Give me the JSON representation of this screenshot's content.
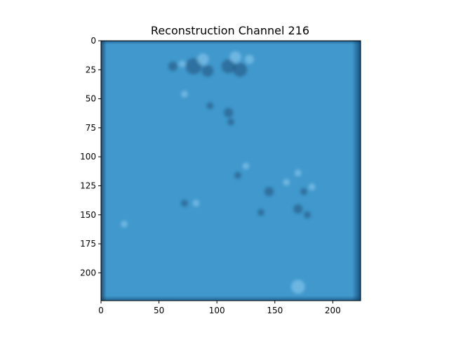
{
  "figure": {
    "title": "Reconstruction Channel 216",
    "background_color": "#ffffff",
    "image_base_color": "#4098cc",
    "image_edge_color": "#0b3a66",
    "blob_dark_color": "#1e4f7a",
    "blob_light_color": "#8ccaf0"
  },
  "x_axis": {
    "range": [
      0,
      224
    ],
    "ticks": [
      {
        "value": 0,
        "label": "0"
      },
      {
        "value": 50,
        "label": "50"
      },
      {
        "value": 100,
        "label": "100"
      },
      {
        "value": 150,
        "label": "150"
      },
      {
        "value": 200,
        "label": "200"
      }
    ]
  },
  "y_axis": {
    "range": [
      0,
      224
    ],
    "inverted": true,
    "ticks": [
      {
        "value": 0,
        "label": "0"
      },
      {
        "value": 25,
        "label": "25"
      },
      {
        "value": 50,
        "label": "50"
      },
      {
        "value": 75,
        "label": "75"
      },
      {
        "value": 100,
        "label": "100"
      },
      {
        "value": 125,
        "label": "125"
      },
      {
        "value": 150,
        "label": "150"
      },
      {
        "value": 175,
        "label": "175"
      },
      {
        "value": 200,
        "label": "200"
      }
    ]
  },
  "features": [
    {
      "x": 80,
      "y": 22,
      "r": 7,
      "tone": "dark"
    },
    {
      "x": 88,
      "y": 16,
      "r": 5,
      "tone": "light"
    },
    {
      "x": 92,
      "y": 26,
      "r": 5,
      "tone": "dark"
    },
    {
      "x": 110,
      "y": 22,
      "r": 6,
      "tone": "dark"
    },
    {
      "x": 120,
      "y": 25,
      "r": 6,
      "tone": "dark"
    },
    {
      "x": 116,
      "y": 14,
      "r": 5,
      "tone": "light"
    },
    {
      "x": 128,
      "y": 16,
      "r": 4,
      "tone": "light"
    },
    {
      "x": 62,
      "y": 22,
      "r": 4,
      "tone": "dark"
    },
    {
      "x": 70,
      "y": 20,
      "r": 3,
      "tone": "light"
    },
    {
      "x": 72,
      "y": 46,
      "r": 3,
      "tone": "light"
    },
    {
      "x": 94,
      "y": 56,
      "r": 3,
      "tone": "dark"
    },
    {
      "x": 110,
      "y": 62,
      "r": 4,
      "tone": "dark"
    },
    {
      "x": 112,
      "y": 70,
      "r": 3,
      "tone": "dark"
    },
    {
      "x": 125,
      "y": 108,
      "r": 3,
      "tone": "light"
    },
    {
      "x": 118,
      "y": 116,
      "r": 3,
      "tone": "dark"
    },
    {
      "x": 145,
      "y": 130,
      "r": 4,
      "tone": "dark"
    },
    {
      "x": 160,
      "y": 122,
      "r": 3,
      "tone": "light"
    },
    {
      "x": 170,
      "y": 114,
      "r": 3,
      "tone": "light"
    },
    {
      "x": 175,
      "y": 130,
      "r": 3,
      "tone": "dark"
    },
    {
      "x": 182,
      "y": 126,
      "r": 3,
      "tone": "light"
    },
    {
      "x": 170,
      "y": 145,
      "r": 4,
      "tone": "dark"
    },
    {
      "x": 178,
      "y": 150,
      "r": 3,
      "tone": "dark"
    },
    {
      "x": 138,
      "y": 148,
      "r": 3,
      "tone": "dark"
    },
    {
      "x": 72,
      "y": 140,
      "r": 3,
      "tone": "dark"
    },
    {
      "x": 82,
      "y": 140,
      "r": 3,
      "tone": "light"
    },
    {
      "x": 20,
      "y": 158,
      "r": 3,
      "tone": "light"
    },
    {
      "x": 170,
      "y": 212,
      "r": 6,
      "tone": "light"
    }
  ]
}
